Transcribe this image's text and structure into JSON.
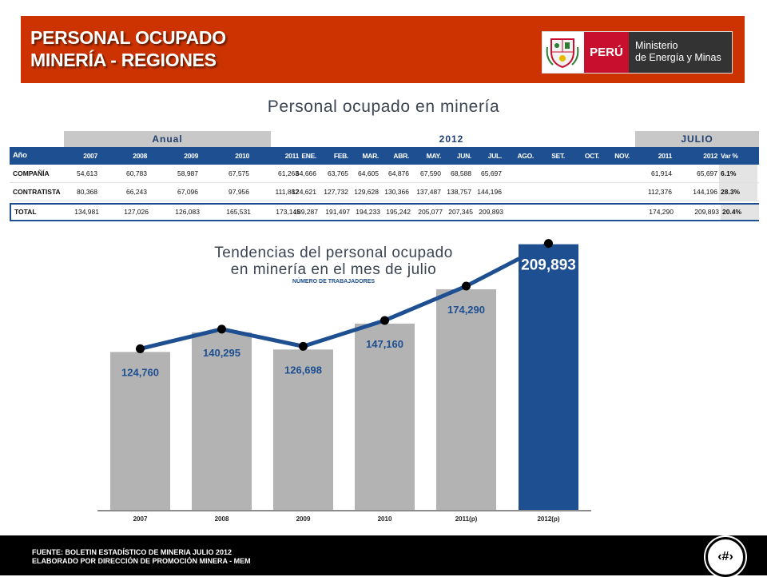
{
  "header": {
    "title_line1": "PERSONAL OCUPADO",
    "title_line2": "MINERÍA - REGIONES"
  },
  "logo": {
    "country": "PERÚ",
    "ministry_line1": "Ministerio",
    "ministry_line2": "de Energía y Minas"
  },
  "table": {
    "title": "Personal ocupado en minería",
    "groups": [
      "Anual",
      "2012",
      "JULIO"
    ],
    "columns": [
      "Año",
      "2007",
      "2008",
      "2009",
      "2010",
      "2011",
      "ENE.",
      "FEB.",
      "MAR.",
      "ABR.",
      "MAY.",
      "JUN.",
      "JUL.",
      "AGO.",
      "SET.",
      "OCT.",
      "NOV.",
      "2011",
      "2012",
      "Var %"
    ],
    "rows": [
      {
        "label": "COMPAÑÍA",
        "values": [
          "54,613",
          "60,783",
          "58,987",
          "67,575",
          "61,263",
          "64,666",
          "63,765",
          "64,605",
          "64,876",
          "67,590",
          "68,588",
          "65,697",
          "",
          "",
          "",
          "",
          "61,914",
          "65,697",
          "6.1%"
        ]
      },
      {
        "label": "CONTRATISTA",
        "values": [
          "80,368",
          "66,243",
          "67,096",
          "97,956",
          "111,882",
          "124,621",
          "127,732",
          "129,628",
          "130,366",
          "137,487",
          "138,757",
          "144,196",
          "",
          "",
          "",
          "",
          "112,376",
          "144,196",
          "28.3%"
        ]
      },
      {
        "label": "TOTAL",
        "values": [
          "134,981",
          "127,026",
          "126,083",
          "165,531",
          "173,145",
          "189,287",
          "191,497",
          "194,233",
          "195,242",
          "205,077",
          "207,345",
          "209,893",
          "",
          "",
          "",
          "",
          "174,290",
          "209,893",
          "20.4%"
        ]
      }
    ]
  },
  "chart_data": {
    "type": "bar",
    "title_line1": "Tendencias del personal ocupado",
    "title_line2": "en minería en el mes de julio",
    "subtitle": "NÚMERO DE TRABAJADORES",
    "categories": [
      "2007",
      "2008",
      "2009",
      "2010",
      "2011(p)",
      "2012(p)"
    ],
    "values": [
      124760,
      140295,
      126698,
      147160,
      174290,
      209893
    ],
    "labels": [
      "124,760",
      "140,295",
      "126,698",
      "147,160",
      "174,290",
      "209,893"
    ],
    "trend_line": true,
    "colors": {
      "bar": "#b3b3b3",
      "highlight_bar": "#1d4f91",
      "line": "#1d4f91"
    }
  },
  "footer": {
    "source": "FUENTE: BOLETIN ESTADÍSTICO DE MINERIA JULIO 2012",
    "credit": "ELABORADO POR DIRECCIÓN DE PROMOCIÓN MINERA - MEM",
    "page_number": "‹#›"
  },
  "colors": {
    "header_bg": "#cc3300",
    "accent_blue": "#1d4f91"
  }
}
